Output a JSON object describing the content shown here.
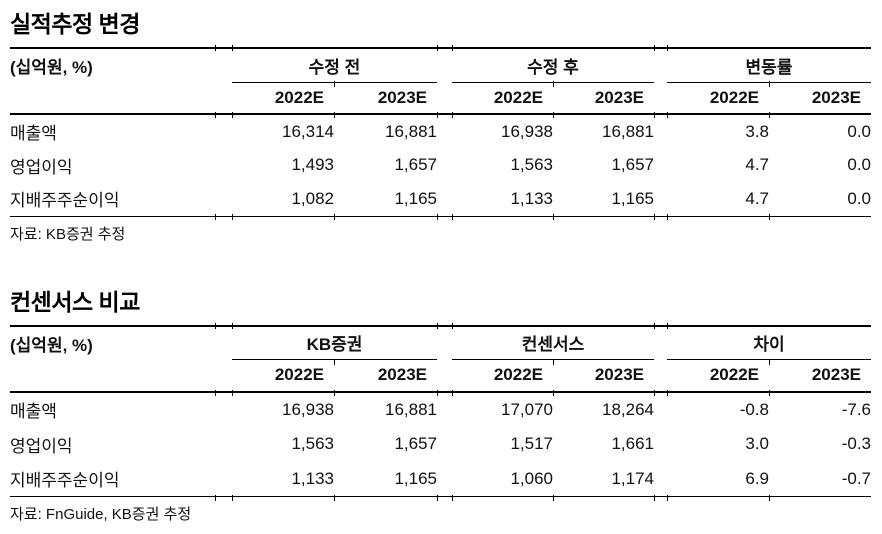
{
  "colors": {
    "text": "#111111",
    "rule": "#000000",
    "background": "#ffffff"
  },
  "tables": [
    {
      "title": "실적추정 변경",
      "unit_label": "(십억원, %)",
      "col_groups": [
        {
          "label": "수정 전"
        },
        {
          "label": "수정 후"
        },
        {
          "label": "변동률"
        }
      ],
      "year_headers": [
        "2022E",
        "2023E",
        "2022E",
        "2023E",
        "2022E",
        "2023E"
      ],
      "rows": [
        {
          "label": "매출액",
          "values": [
            "16,314",
            "16,881",
            "16,938",
            "16,881",
            "3.8",
            "0.0"
          ]
        },
        {
          "label": "영업이익",
          "values": [
            "1,493",
            "1,657",
            "1,563",
            "1,657",
            "4.7",
            "0.0"
          ]
        },
        {
          "label": "지배주주순이익",
          "values": [
            "1,082",
            "1,165",
            "1,133",
            "1,165",
            "4.7",
            "0.0"
          ]
        }
      ],
      "source": "자료: KB증권 추정"
    },
    {
      "title": "컨센서스 비교",
      "unit_label": "(십억원, %)",
      "col_groups": [
        {
          "label": "KB증권"
        },
        {
          "label": "컨센서스"
        },
        {
          "label": "차이"
        }
      ],
      "year_headers": [
        "2022E",
        "2023E",
        "2022E",
        "2023E",
        "2022E",
        "2023E"
      ],
      "rows": [
        {
          "label": "매출액",
          "values": [
            "16,938",
            "16,881",
            "17,070",
            "18,264",
            "-0.8",
            "-7.6"
          ]
        },
        {
          "label": "영업이익",
          "values": [
            "1,563",
            "1,657",
            "1,517",
            "1,661",
            "3.0",
            "-0.3"
          ]
        },
        {
          "label": "지배주주순이익",
          "values": [
            "1,133",
            "1,165",
            "1,060",
            "1,174",
            "6.9",
            "-0.7"
          ]
        }
      ],
      "source": "자료: FnGuide, KB증권 추정"
    }
  ]
}
